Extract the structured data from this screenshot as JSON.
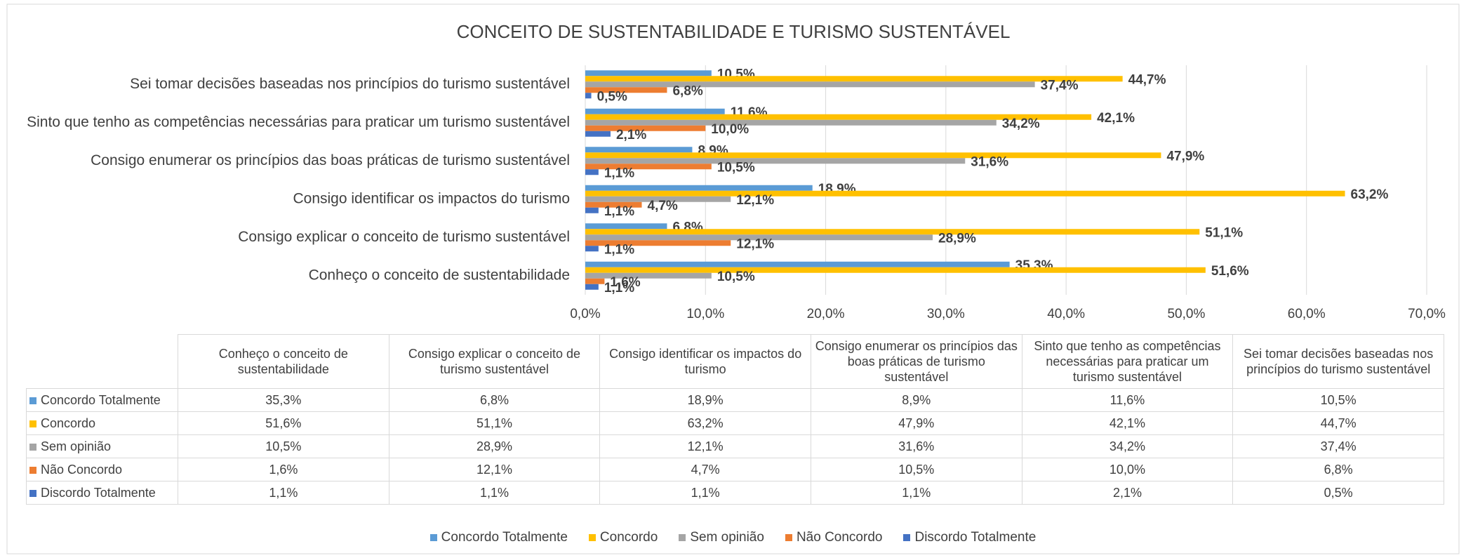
{
  "chart_data": {
    "type": "hbar",
    "title": "CONCEITO DE SUSTENTABILIDADE E TURISMO SUSTENTÁVEL",
    "categories": [
      "Conheço o conceito de sustentabilidade",
      "Consigo explicar o conceito de turismo sustentável",
      "Consigo identificar os impactos do turismo",
      "Consigo enumerar os princípios das boas práticas de turismo sustentável",
      "Sinto que tenho as competências necessárias para praticar um turismo sustentável",
      "Sei tomar decisões baseadas nos princípios do turismo sustentável"
    ],
    "series": [
      {
        "name": "Concordo Totalmente",
        "color": "#5b9bd5",
        "values": [
          35.3,
          6.8,
          18.9,
          8.9,
          11.6,
          10.5
        ],
        "value_labels": [
          "35,3%",
          "6,8%",
          "18,9%",
          "8,9%",
          "11,6%",
          "10,5%"
        ]
      },
      {
        "name": "Concordo",
        "color": "#ffc000",
        "values": [
          51.6,
          51.1,
          63.2,
          47.9,
          42.1,
          44.7
        ],
        "value_labels": [
          "51,6%",
          "51,1%",
          "63,2%",
          "47,9%",
          "42,1%",
          "44,7%"
        ]
      },
      {
        "name": "Sem opinião",
        "color": "#a5a5a5",
        "values": [
          10.5,
          28.9,
          12.1,
          31.6,
          34.2,
          37.4
        ],
        "value_labels": [
          "10,5%",
          "28,9%",
          "12,1%",
          "31,6%",
          "34,2%",
          "37,4%"
        ]
      },
      {
        "name": "Não Concordo",
        "color": "#ed7d31",
        "values": [
          1.6,
          12.1,
          4.7,
          10.5,
          10.0,
          6.8
        ],
        "value_labels": [
          "1,6%",
          "12,1%",
          "4,7%",
          "10,5%",
          "10,0%",
          "6,8%"
        ]
      },
      {
        "name": "Discordo Totalmente",
        "color": "#4472c4",
        "values": [
          1.1,
          1.1,
          1.1,
          1.1,
          2.1,
          0.5
        ],
        "value_labels": [
          "1,1%",
          "1,1%",
          "1,1%",
          "1,1%",
          "2,1%",
          "0,5%"
        ]
      }
    ],
    "xlim": [
      0,
      70
    ],
    "xticks": [
      {
        "value": 0,
        "label": "0,0%"
      },
      {
        "value": 10,
        "label": "10,0%"
      },
      {
        "value": 20,
        "label": "20,0%"
      },
      {
        "value": 30,
        "label": "30,0%"
      },
      {
        "value": 40,
        "label": "40,0%"
      },
      {
        "value": 50,
        "label": "50,0%"
      },
      {
        "value": 60,
        "label": "60,0%"
      },
      {
        "value": 70,
        "label": "70,0%"
      }
    ],
    "grid": true,
    "legend": "bottom",
    "data_table": true
  }
}
